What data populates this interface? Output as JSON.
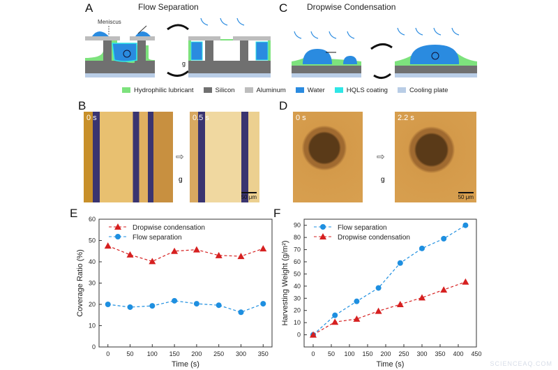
{
  "panels": {
    "A": {
      "letter": "A",
      "title": "Flow Separation",
      "meniscus": "Meniscus",
      "g": "g"
    },
    "C": {
      "letter": "C",
      "title": "Dropwise Condensation"
    },
    "B": {
      "letter": "B",
      "t1": "0 s",
      "t2": "0.5 s",
      "scale": "50 μm",
      "g": "g"
    },
    "D": {
      "letter": "D",
      "t1": "0 s",
      "t2": "2.2 s",
      "scale": "50 μm",
      "g": "g"
    },
    "E": {
      "letter": "E"
    },
    "F": {
      "letter": "F"
    }
  },
  "legend": [
    {
      "label": "Hydrophilic lubricant",
      "color": "#7de27d"
    },
    {
      "label": "Silicon",
      "color": "#707070"
    },
    {
      "label": "Aluminum",
      "color": "#bdbdbd"
    },
    {
      "label": "Water",
      "color": "#2a8be0"
    },
    {
      "label": "HQLS coating",
      "color": "#2fe6e6"
    },
    {
      "label": "Cooling plate",
      "color": "#b9cde6"
    }
  ],
  "watermark": "SCIENCEAQ.COM",
  "chart_data": [
    {
      "type": "line",
      "panel": "E",
      "xlabel": "Time (s)",
      "ylabel": "Coverage Ratio (%)",
      "xlim": [
        -20,
        370
      ],
      "ylim": [
        0,
        60
      ],
      "xticks": [
        0,
        50,
        100,
        150,
        200,
        250,
        300,
        350
      ],
      "yticks": [
        0,
        10,
        20,
        30,
        40,
        50,
        60
      ],
      "legend_position": "top-left",
      "grid": false,
      "x": [
        0,
        50,
        100,
        150,
        200,
        250,
        300,
        350
      ],
      "series": [
        {
          "name": "Dropwise condensation",
          "color": "#d62020",
          "marker": "triangle",
          "values": [
            47.5,
            43.3,
            40.2,
            45,
            45.7,
            43,
            42.6,
            46.2
          ]
        },
        {
          "name": "Flow separation",
          "color": "#1e8fe0",
          "marker": "circle",
          "values": [
            20,
            18.7,
            19.3,
            21.7,
            20.3,
            19.6,
            16.3,
            20.3
          ]
        }
      ]
    },
    {
      "type": "line",
      "panel": "F",
      "xlabel": "Time (s)",
      "ylabel": "Harvesting Weight (g/m²)",
      "xlim": [
        -25,
        450
      ],
      "ylim": [
        -10,
        95
      ],
      "xticks": [
        0,
        50,
        100,
        150,
        200,
        250,
        300,
        350,
        400,
        450
      ],
      "yticks": [
        0,
        10,
        20,
        30,
        40,
        50,
        60,
        70,
        80,
        90
      ],
      "legend_position": "top-left",
      "grid": false,
      "x": [
        0,
        60,
        120,
        180,
        240,
        300,
        360,
        420
      ],
      "series": [
        {
          "name": "Flow separation",
          "color": "#1e8fe0",
          "marker": "circle",
          "values": [
            0,
            16,
            27.5,
            38.5,
            59,
            71,
            79,
            90
          ]
        },
        {
          "name": "Dropwise condensation",
          "color": "#d62020",
          "marker": "triangle",
          "values": [
            0,
            10.5,
            13,
            19.5,
            25,
            30.5,
            37,
            43.5
          ]
        }
      ]
    }
  ]
}
